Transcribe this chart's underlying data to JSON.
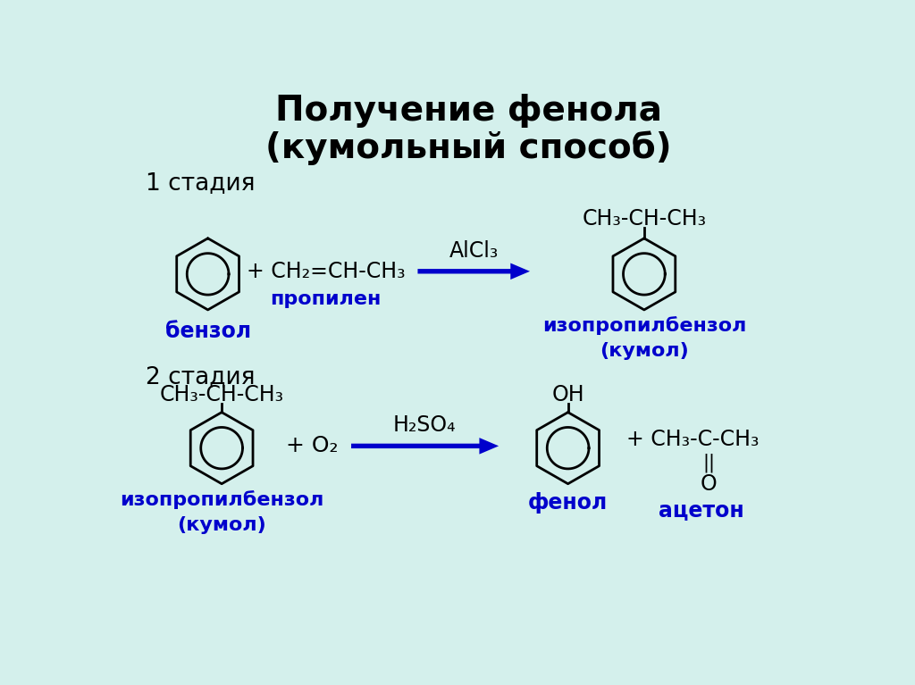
{
  "title_line1": "Получение фенола",
  "title_line2": "(кумольный способ)",
  "bg_color": "#d4f0ec",
  "text_color": "#000000",
  "blue_color": "#0000cc",
  "stage1_label": "1 стадия",
  "stage2_label": "2 стадия",
  "stage1_catalyst": "AlCl₃",
  "stage2_catalyst": "H₂SO₄",
  "benzol_label": "бензол",
  "propilen_formula": "+ CH₂=CH-CH₃",
  "propilen_label": "пропилен",
  "kumol_formula_top": "CH₃-CH-CH₃",
  "kumol_label": "изопропилбензол\n(кумол)",
  "stage2_left_formula": "CH₃-CH-CH₃",
  "stage2_reactant": "+ O₂",
  "fenol_label": "фенол",
  "aceton_formula1": "+ CH₃-C-CH₃",
  "aceton_double": "||",
  "aceton_formula2": "O",
  "aceton_label": "ацетон",
  "izopropil_label": "изопропилбензол\n(кумол)",
  "oh_label": "OH"
}
